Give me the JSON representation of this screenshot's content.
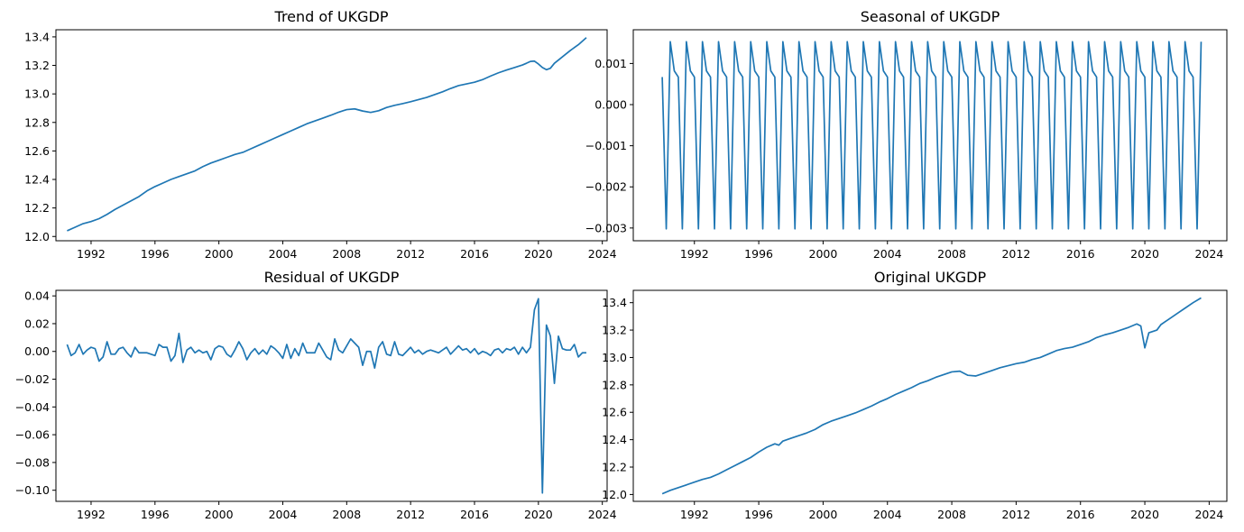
{
  "chart_data": [
    {
      "type": "line",
      "title": "Trend of UKGDP",
      "xlabel": "",
      "ylabel": "",
      "x_ticks": [
        "1992",
        "1996",
        "2000",
        "2004",
        "2008",
        "2012",
        "2016",
        "2020",
        "2024"
      ],
      "y_ticks": [
        "12.0",
        "12.2",
        "12.4",
        "12.6",
        "12.8",
        "13.0",
        "13.2",
        "13.4"
      ],
      "xlim": [
        1989.8,
        2024.3
      ],
      "ylim": [
        11.97,
        13.45
      ],
      "color": "#1f77b4",
      "series": [
        {
          "x": [
            1990.5,
            1991,
            1991.5,
            1992,
            1992.5,
            1993,
            1993.5,
            1994,
            1994.5,
            1995,
            1995.5,
            1996,
            1996.5,
            1997,
            1997.5,
            1998,
            1998.5,
            1999,
            1999.5,
            2000,
            2000.5,
            2001,
            2001.5,
            2002,
            2002.5,
            2003,
            2003.5,
            2004,
            2004.5,
            2005,
            2005.5,
            2006,
            2006.5,
            2007,
            2007.5,
            2008,
            2008.5,
            2009,
            2009.5,
            2010,
            2010.5,
            2011,
            2011.5,
            2012,
            2012.5,
            2013,
            2013.5,
            2014,
            2014.5,
            2015,
            2015.5,
            2016,
            2016.5,
            2017,
            2017.5,
            2018,
            2018.5,
            2019,
            2019.25,
            2019.5,
            2019.75,
            2020,
            2020.25,
            2020.5,
            2020.75,
            2021,
            2021.5,
            2022,
            2022.5,
            2023
          ],
          "values": [
            12.04,
            12.065,
            12.09,
            12.105,
            12.125,
            12.155,
            12.19,
            12.22,
            12.25,
            12.28,
            12.32,
            12.35,
            12.375,
            12.4,
            12.42,
            12.44,
            12.46,
            12.49,
            12.515,
            12.535,
            12.555,
            12.575,
            12.59,
            12.615,
            12.64,
            12.665,
            12.69,
            12.715,
            12.74,
            12.765,
            12.79,
            12.81,
            12.83,
            12.85,
            12.872,
            12.89,
            12.895,
            12.88,
            12.87,
            12.882,
            12.905,
            12.92,
            12.932,
            12.945,
            12.96,
            12.975,
            12.995,
            13.015,
            13.038,
            13.058,
            13.07,
            13.082,
            13.1,
            13.125,
            13.148,
            13.167,
            13.185,
            13.203,
            13.215,
            13.228,
            13.23,
            13.21,
            13.185,
            13.17,
            13.18,
            13.215,
            13.26,
            13.305,
            13.345,
            13.395
          ]
        }
      ]
    },
    {
      "type": "line",
      "title": "Seasonal of UKGDP",
      "xlabel": "",
      "ylabel": "",
      "x_ticks": [
        "1992",
        "1996",
        "2000",
        "2004",
        "2008",
        "2012",
        "2016",
        "2020",
        "2024"
      ],
      "y_ticks": [
        "0.001",
        "0.000",
        "−0.001",
        "−0.002",
        "−0.003"
      ],
      "xlim": [
        1988.2,
        2025.1
      ],
      "ylim": [
        -0.00331,
        0.00182
      ],
      "color": "#1f77b4",
      "series": [
        {
          "start_year": 1990,
          "end_year": 2023,
          "period_pattern": [
            0.00067,
            -0.00302,
            0.00153,
            0.00082
          ],
          "values": [
            0.00067,
            -0.00302,
            0.00153,
            0.00082
          ]
        }
      ]
    },
    {
      "type": "line",
      "title": "Residual of UKGDP",
      "xlabel": "",
      "ylabel": "",
      "x_ticks": [
        "1992",
        "1996",
        "2000",
        "2004",
        "2008",
        "2012",
        "2016",
        "2020",
        "2024"
      ],
      "y_ticks": [
        "0.04",
        "0.02",
        "0.00",
        "−0.02",
        "−0.04",
        "−0.06",
        "−0.08",
        "−0.10"
      ],
      "xlim": [
        1989.8,
        2024.3
      ],
      "ylim": [
        -0.108,
        0.044
      ],
      "color": "#1f77b4",
      "series": [
        {
          "x": [
            1990.5,
            1990.75,
            1991,
            1991.25,
            1991.5,
            1991.75,
            1992,
            1992.25,
            1992.5,
            1992.75,
            1993,
            1993.25,
            1993.5,
            1993.75,
            1994,
            1994.25,
            1994.5,
            1994.75,
            1995,
            1995.25,
            1995.5,
            1995.75,
            1996,
            1996.25,
            1996.5,
            1996.75,
            1997,
            1997.25,
            1997.5,
            1997.75,
            1998,
            1998.25,
            1998.5,
            1998.75,
            1999,
            1999.25,
            1999.5,
            1999.75,
            2000,
            2000.25,
            2000.5,
            2000.75,
            2001,
            2001.25,
            2001.5,
            2001.75,
            2002,
            2002.25,
            2002.5,
            2002.75,
            2003,
            2003.25,
            2003.5,
            2003.75,
            2004,
            2004.25,
            2004.5,
            2004.75,
            2005,
            2005.25,
            2005.5,
            2005.75,
            2006,
            2006.25,
            2006.5,
            2006.75,
            2007,
            2007.25,
            2007.5,
            2007.75,
            2008,
            2008.25,
            2008.5,
            2008.75,
            2009,
            2009.25,
            2009.5,
            2009.75,
            2010,
            2010.25,
            2010.5,
            2010.75,
            2011,
            2011.25,
            2011.5,
            2011.75,
            2012,
            2012.25,
            2012.5,
            2012.75,
            2013,
            2013.25,
            2013.5,
            2013.75,
            2014,
            2014.25,
            2014.5,
            2014.75,
            2015,
            2015.25,
            2015.5,
            2015.75,
            2016,
            2016.25,
            2016.5,
            2016.75,
            2017,
            2017.25,
            2017.5,
            2017.75,
            2018,
            2018.25,
            2018.5,
            2018.75,
            2019,
            2019.25,
            2019.5,
            2019.75,
            2020,
            2020.25,
            2020.5,
            2020.75,
            2021,
            2021.25,
            2021.5,
            2021.75,
            2022,
            2022.25,
            2022.5,
            2022.75,
            2023
          ],
          "values": [
            0.005,
            -0.003,
            -0.001,
            0.005,
            -0.002,
            0.001,
            0.003,
            0.002,
            -0.007,
            -0.004,
            0.007,
            -0.002,
            -0.002,
            0.002,
            0.003,
            -0.001,
            -0.004,
            0.003,
            -0.001,
            -0.001,
            -0.001,
            -0.002,
            -0.003,
            0.005,
            0.003,
            0.003,
            -0.007,
            -0.003,
            0.013,
            -0.008,
            0.001,
            0.003,
            -0.001,
            0.001,
            -0.001,
            0.0,
            -0.006,
            0.002,
            0.004,
            0.003,
            -0.002,
            -0.004,
            0.001,
            0.007,
            0.002,
            -0.006,
            -0.001,
            0.002,
            -0.002,
            0.001,
            -0.002,
            0.004,
            0.002,
            -0.001,
            -0.005,
            0.005,
            -0.005,
            0.002,
            -0.003,
            0.006,
            -0.001,
            -0.001,
            -0.001,
            0.006,
            0.001,
            -0.004,
            -0.006,
            0.009,
            0.001,
            -0.001,
            0.004,
            0.009,
            0.006,
            0.003,
            -0.01,
            0.0,
            0.0,
            -0.012,
            0.003,
            0.007,
            -0.002,
            -0.003,
            0.007,
            -0.002,
            -0.003,
            0.0,
            0.003,
            -0.001,
            0.001,
            -0.002,
            0.0,
            0.001,
            0.0,
            -0.001,
            0.001,
            0.003,
            -0.002,
            0.001,
            0.004,
            0.001,
            0.002,
            -0.001,
            0.002,
            -0.002,
            0.0,
            -0.001,
            -0.003,
            0.001,
            0.002,
            -0.001,
            0.002,
            0.001,
            0.003,
            -0.002,
            0.003,
            -0.001,
            0.003,
            0.03,
            0.038,
            -0.102,
            0.019,
            0.011,
            -0.023,
            0.011,
            0.002,
            0.001,
            0.001,
            0.005,
            -0.004,
            -0.001,
            -0.001
          ]
        }
      ]
    },
    {
      "type": "line",
      "title": "Original UKGDP",
      "xlabel": "",
      "ylabel": "",
      "x_ticks": [
        "1992",
        "1996",
        "2000",
        "2004",
        "2008",
        "2012",
        "2016",
        "2020",
        "2024"
      ],
      "y_ticks": [
        "12.0",
        "12.2",
        "12.4",
        "12.6",
        "12.8",
        "13.0",
        "13.2",
        "13.4"
      ],
      "xlim": [
        1988.2,
        2025.1
      ],
      "ylim": [
        11.95,
        13.49
      ],
      "color": "#1f77b4",
      "series": [
        {
          "x": [
            1990,
            1990.5,
            1991,
            1991.5,
            1992,
            1992.5,
            1993,
            1993.5,
            1994,
            1994.5,
            1995,
            1995.5,
            1996,
            1996.5,
            1997,
            1997.25,
            1997.5,
            1998,
            1998.5,
            1999,
            1999.5,
            2000,
            2000.5,
            2001,
            2001.5,
            2002,
            2002.5,
            2003,
            2003.5,
            2004,
            2004.5,
            2005,
            2005.5,
            2006,
            2006.5,
            2007,
            2007.5,
            2008,
            2008.5,
            2009,
            2009.5,
            2010,
            2010.5,
            2011,
            2011.5,
            2012,
            2012.5,
            2013,
            2013.5,
            2014,
            2014.5,
            2015,
            2015.5,
            2016,
            2016.5,
            2017,
            2017.5,
            2018,
            2018.5,
            2019,
            2019.5,
            2019.75,
            2020,
            2020.25,
            2020.5,
            2020.75,
            2021,
            2021.25,
            2021.5,
            2022,
            2022.5,
            2023,
            2023.5
          ],
          "values": [
            12.005,
            12.03,
            12.05,
            12.07,
            12.09,
            12.11,
            12.125,
            12.15,
            12.18,
            12.21,
            12.24,
            12.27,
            12.31,
            12.345,
            12.37,
            12.36,
            12.39,
            12.41,
            12.43,
            12.45,
            12.475,
            12.51,
            12.535,
            12.555,
            12.575,
            12.595,
            12.62,
            12.645,
            12.675,
            12.7,
            12.73,
            12.755,
            12.78,
            12.81,
            12.83,
            12.855,
            12.875,
            12.895,
            12.9,
            12.87,
            12.865,
            12.885,
            12.905,
            12.925,
            12.94,
            12.955,
            12.965,
            12.985,
            13.0,
            13.025,
            13.05,
            13.065,
            13.075,
            13.095,
            13.115,
            13.145,
            13.165,
            13.18,
            13.2,
            13.22,
            13.245,
            13.23,
            13.07,
            13.18,
            13.19,
            13.2,
            13.24,
            13.26,
            13.28,
            13.32,
            13.36,
            13.4,
            13.435
          ]
        }
      ]
    }
  ]
}
